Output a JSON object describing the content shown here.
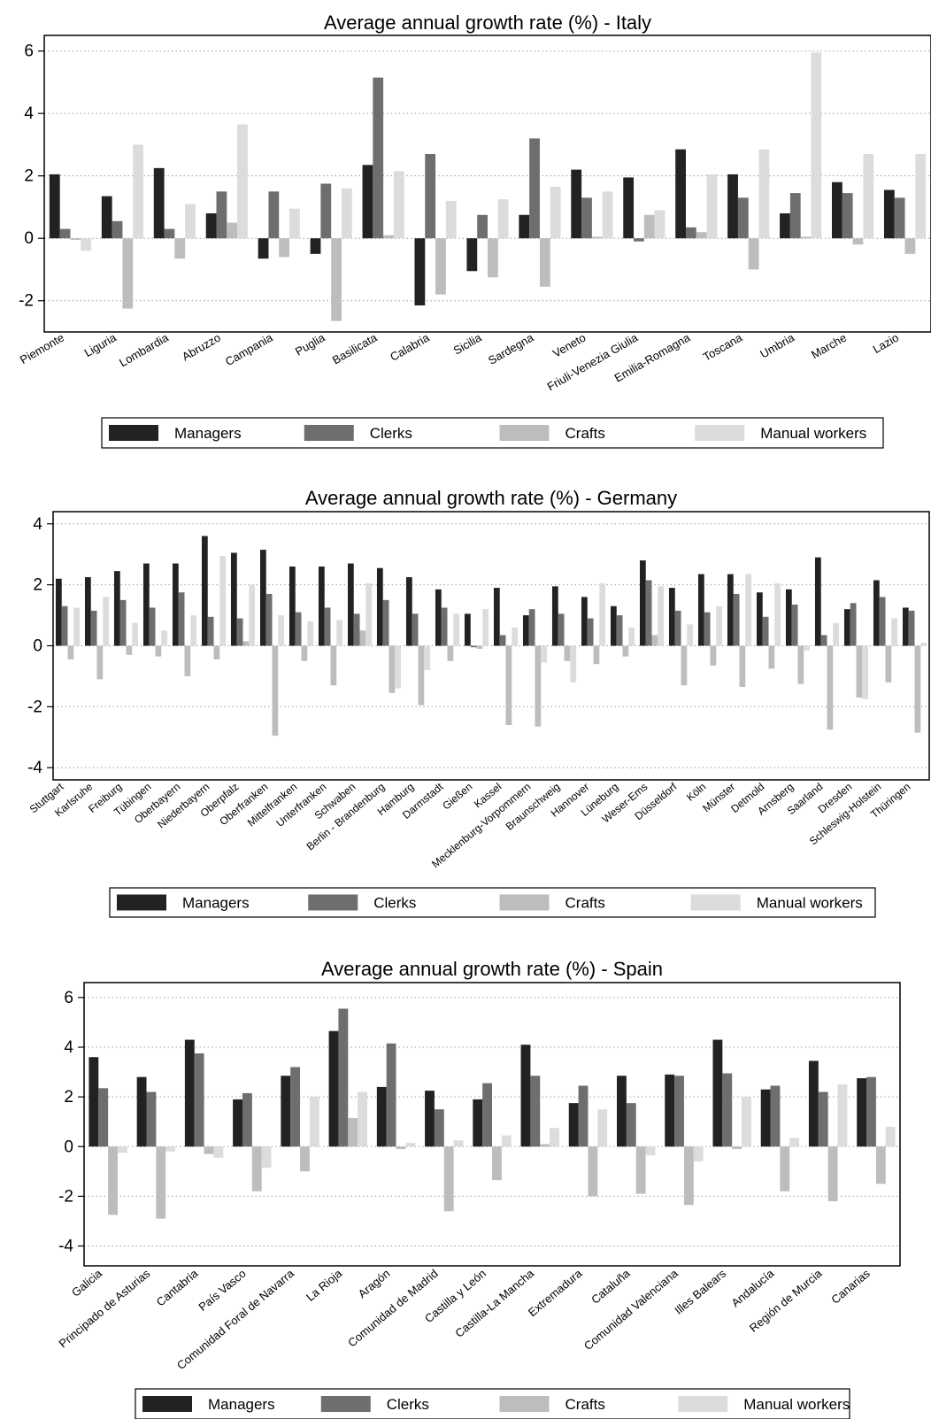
{
  "colors": {
    "Managers": "#222222",
    "Clerks": "#6e6e6e",
    "Crafts": "#bdbdbd",
    "Manual workers": "#dcdcdc"
  },
  "chart_data": [
    {
      "type": "bar",
      "title": "Average annual growth rate (%) - Italy",
      "ylim": [
        -3,
        6.5
      ],
      "yticks": [
        -2,
        0,
        2,
        4,
        6
      ],
      "ytick_labels": [
        "-2",
        "0",
        "2",
        "4",
        "6"
      ],
      "grid": "dotted-horizontal",
      "legend": "bottom",
      "categories": [
        "Piemonte",
        "Liguria",
        "Lombardia",
        "Abruzzo",
        "Campania",
        "Puglia",
        "Basilicata",
        "Calabria",
        "Sicilia",
        "Sardegna",
        "Veneto",
        "Friuli-Venezia Giulia",
        "Emilia-Romagna",
        "Toscana",
        "Umbria",
        "Marche",
        "Lazio"
      ],
      "series": [
        {
          "name": "Managers",
          "values": [
            2.05,
            1.35,
            2.25,
            0.8,
            -0.65,
            -0.5,
            2.35,
            -2.15,
            -1.05,
            0.75,
            2.2,
            1.95,
            2.85,
            2.05,
            0.8,
            1.8,
            1.55
          ]
        },
        {
          "name": "Clerks",
          "values": [
            0.3,
            0.55,
            0.3,
            1.5,
            1.5,
            1.75,
            5.15,
            2.7,
            0.75,
            3.2,
            1.3,
            -0.1,
            0.35,
            1.3,
            1.45,
            1.45,
            1.3
          ]
        },
        {
          "name": "Crafts",
          "values": [
            -0.05,
            -2.25,
            -0.65,
            0.5,
            -0.6,
            -2.65,
            0.1,
            -1.8,
            -1.25,
            -1.55,
            0.05,
            0.75,
            0.2,
            -1.0,
            0.05,
            -0.2,
            -0.5
          ]
        },
        {
          "name": "Manual workers",
          "values": [
            -0.4,
            3.0,
            1.1,
            3.65,
            0.95,
            1.6,
            2.15,
            1.2,
            1.25,
            1.65,
            1.5,
            0.9,
            2.05,
            2.85,
            5.95,
            2.7,
            2.7
          ]
        }
      ]
    },
    {
      "type": "bar",
      "title": "Average annual growth rate (%) - Germany",
      "ylim": [
        -4.4,
        4.4
      ],
      "yticks": [
        -4,
        -2,
        0,
        2,
        4
      ],
      "ytick_labels": [
        "-4",
        "-2",
        "0",
        "2",
        "4"
      ],
      "grid": "dotted-horizontal",
      "legend": "bottom",
      "categories": [
        "Stuttgart",
        "Karlsruhe",
        "Freiburg",
        "Tübingen",
        "Oberbayern",
        "Niederbayern",
        "Oberpfalz",
        "Oberfranken",
        "Mittelfranken",
        "Unterfranken",
        "Schwaben",
        "Berlin - Brandenburg",
        "Hamburg",
        "Darmstadt",
        "Gießen",
        "Kassel",
        "Mecklenburg-Vorpommern",
        "Braunschweig",
        "Hannover",
        "Lüneburg",
        "Weser-Ems",
        "Düsseldorf",
        "Köln",
        "Münster",
        "Detmold",
        "Arnsberg",
        "Saarland",
        "Dresden",
        "Schleswig-Holstein",
        "Thüringen"
      ],
      "series": [
        {
          "name": "Managers",
          "values": [
            2.2,
            2.25,
            2.45,
            2.7,
            2.7,
            3.6,
            3.05,
            3.15,
            2.6,
            2.6,
            2.7,
            2.55,
            2.25,
            1.85,
            1.05,
            1.9,
            1.0,
            1.95,
            1.6,
            1.3,
            2.8,
            1.9,
            2.35,
            2.35,
            1.75,
            1.85,
            2.9,
            1.2,
            2.15,
            1.25
          ]
        },
        {
          "name": "Clerks",
          "values": [
            1.3,
            1.15,
            1.5,
            1.25,
            1.75,
            0.95,
            0.9,
            1.7,
            1.1,
            1.25,
            1.05,
            1.5,
            1.05,
            1.25,
            -0.05,
            0.35,
            1.2,
            1.05,
            0.9,
            1.0,
            2.15,
            1.15,
            1.1,
            1.7,
            0.95,
            1.35,
            0.35,
            1.4,
            1.6,
            1.15
          ]
        },
        {
          "name": "Crafts",
          "values": [
            -0.45,
            -1.1,
            -0.3,
            -0.35,
            -1.0,
            -0.45,
            0.15,
            -2.95,
            -0.5,
            -1.3,
            0.5,
            -1.55,
            -1.95,
            -0.5,
            -0.1,
            -2.6,
            -2.65,
            -0.5,
            -0.6,
            -0.35,
            0.35,
            -1.3,
            -0.65,
            -1.35,
            -0.75,
            -1.25,
            -2.75,
            -1.7,
            -1.2,
            -2.85
          ]
        },
        {
          "name": "Manual workers",
          "values": [
            1.25,
            1.6,
            0.75,
            0.5,
            1.0,
            2.95,
            2.0,
            1.0,
            0.8,
            0.85,
            2.05,
            -1.4,
            -0.8,
            1.05,
            1.2,
            0.6,
            -0.55,
            -1.2,
            2.05,
            0.6,
            1.95,
            0.7,
            1.3,
            2.35,
            2.05,
            -0.15,
            0.75,
            -1.75,
            0.9,
            0.1
          ]
        }
      ]
    },
    {
      "type": "bar",
      "title": "Average annual growth rate (%) - Spain",
      "ylim": [
        -4.8,
        6.6
      ],
      "yticks": [
        -4,
        -2,
        0,
        2,
        4,
        6
      ],
      "ytick_labels": [
        "-4",
        "-2",
        "0",
        "2",
        "4",
        "6"
      ],
      "grid": "dotted-horizontal",
      "legend": "bottom",
      "categories": [
        "Galicia",
        "Principado de Asturias",
        "Cantabria",
        "País Vasco",
        "Comunidad Foral de Navarra",
        "La Rioja",
        "Aragón",
        "Comunidad de Madrid",
        "Castilla y León",
        "Castilla-La Mancha",
        "Extremadura",
        "Cataluña",
        "Comunidad Valenciana",
        "Illes Balears",
        "Andalucía",
        "Región de Murcia",
        "Canarias"
      ],
      "series": [
        {
          "name": "Managers",
          "values": [
            3.6,
            2.8,
            4.3,
            1.9,
            2.85,
            4.65,
            2.4,
            2.25,
            1.9,
            4.1,
            1.75,
            2.85,
            2.9,
            4.3,
            2.3,
            3.45,
            2.75
          ]
        },
        {
          "name": "Clerks",
          "values": [
            2.35,
            2.2,
            3.75,
            2.15,
            3.2,
            5.55,
            4.15,
            1.5,
            2.55,
            2.85,
            2.45,
            1.75,
            2.85,
            2.95,
            2.45,
            2.2,
            2.8
          ]
        },
        {
          "name": "Crafts",
          "values": [
            -2.75,
            -2.9,
            -0.3,
            -1.8,
            -1.0,
            1.15,
            -0.1,
            -2.6,
            -1.35,
            0.1,
            -2.0,
            -1.9,
            -2.35,
            -0.1,
            -1.8,
            -2.2,
            -1.5
          ]
        },
        {
          "name": "Manual workers",
          "values": [
            -0.25,
            -0.2,
            -0.45,
            -0.85,
            2.0,
            2.2,
            0.15,
            0.25,
            0.45,
            0.75,
            1.5,
            -0.35,
            -0.6,
            2.0,
            0.35,
            2.5,
            0.8
          ]
        }
      ]
    }
  ]
}
